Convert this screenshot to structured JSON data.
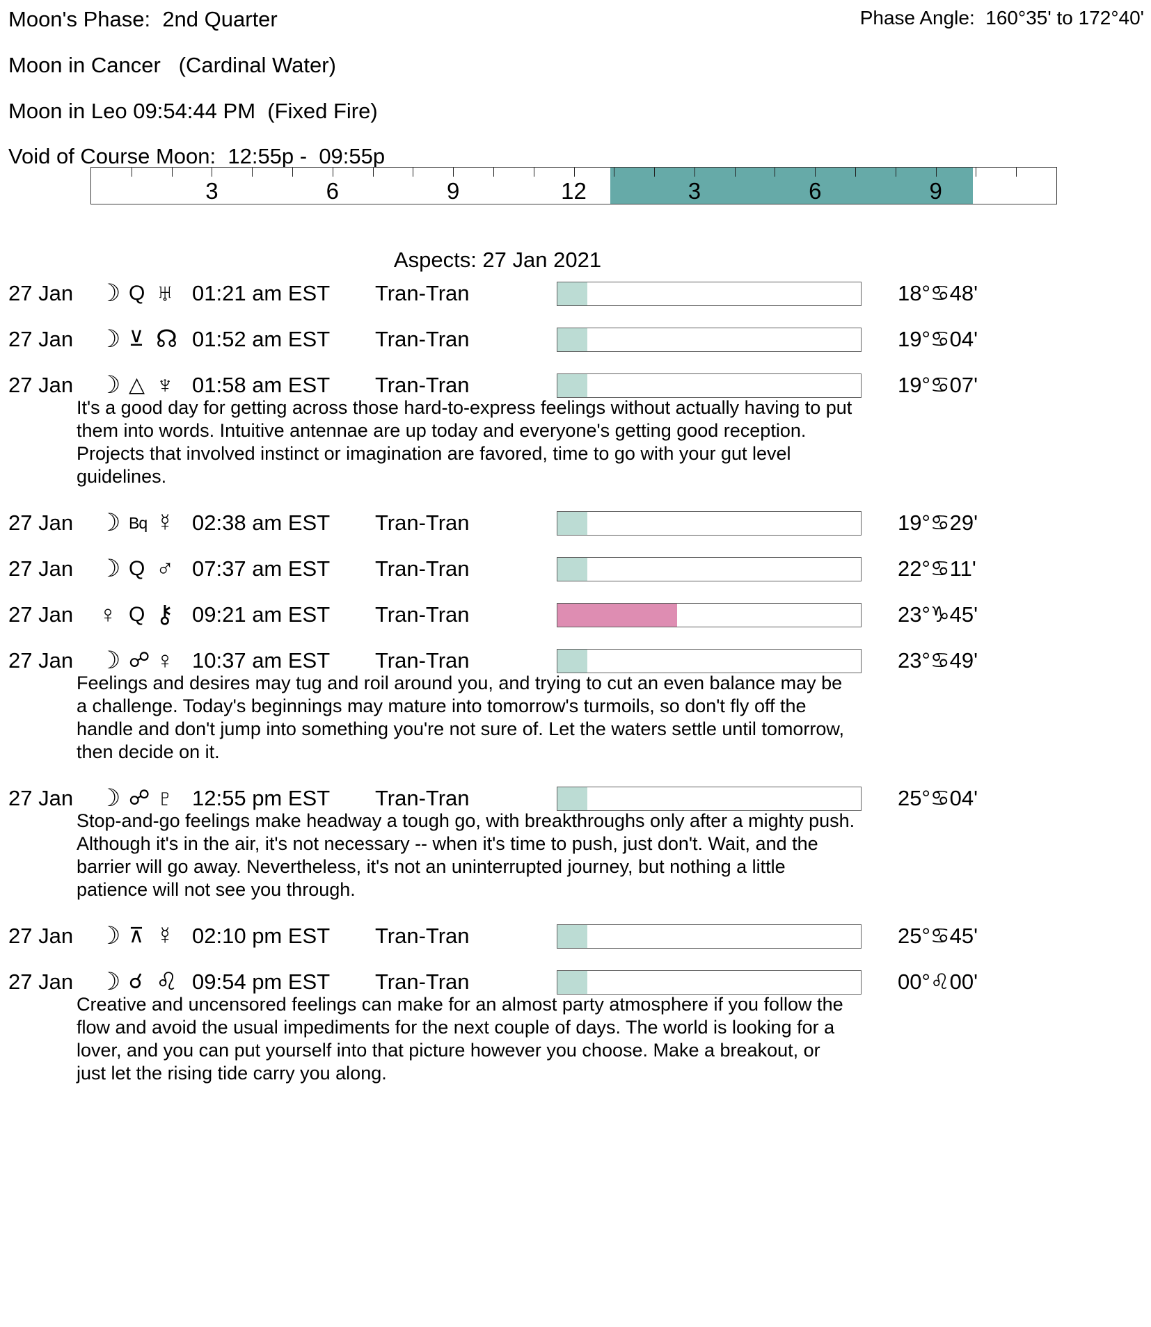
{
  "header": {
    "moons_phase": "Moon's Phase:  2nd Quarter",
    "phase_angle": "Phase Angle:  160°35' to 172°40'",
    "moon_in_cancer": "Moon in Cancer   (Cardinal Water)",
    "moon_in_leo": "Moon in Leo 09:54:44 PM  (Fixed Fire)",
    "void_of_course": "Void of Course Moon:  12:55p -  09:55p"
  },
  "ruler": {
    "hours_total": 24,
    "labels": [
      "3",
      "6",
      "9",
      "12",
      "3",
      "6",
      "9"
    ],
    "label_hours": [
      3,
      6,
      9,
      12,
      15,
      18,
      21
    ],
    "void_start_hour": 12.9167,
    "void_end_hour": 21.9167
  },
  "aspects_title": "Aspects: 27 Jan 2021",
  "colors": {
    "ruler_fill": "#66aaa8",
    "bar_fill_teal": "#bcdcd4",
    "bar_fill_pink": "#de8db2"
  },
  "rows": [
    {
      "date": "27 Jan",
      "p1": "☽",
      "asp": "Q",
      "p2": "♅",
      "time": "01:21 am EST",
      "type": "Tran-Tran",
      "fill": "teal",
      "fill_pct": 9.9,
      "degree": "18°♋48'"
    },
    {
      "date": "27 Jan",
      "p1": "☽",
      "asp": "⊻",
      "p2": "☊",
      "time": "01:52 am EST",
      "type": "Tran-Tran",
      "fill": "teal",
      "fill_pct": 9.9,
      "degree": "19°♋04'"
    },
    {
      "date": "27 Jan",
      "p1": "☽",
      "asp": "△",
      "p2": "♆",
      "time": "01:58 am EST",
      "type": "Tran-Tran",
      "fill": "teal",
      "fill_pct": 9.9,
      "degree": "19°♋07'",
      "note": "It's a good day for getting across those hard-to-express feelings without actually having to put\nthem into words. Intuitive antennae are up today and everyone's getting good reception.\nProjects that involved instinct or imagination are favored, time to go with your gut level\nguidelines."
    },
    {
      "date": "27 Jan",
      "p1": "☽",
      "asp": "Bq",
      "p2": "☿",
      "time": "02:38 am EST",
      "type": "Tran-Tran",
      "fill": "teal",
      "fill_pct": 9.9,
      "degree": "19°♋29'"
    },
    {
      "date": "27 Jan",
      "p1": "☽",
      "asp": "Q",
      "p2": "♂",
      "time": "07:37 am EST",
      "type": "Tran-Tran",
      "fill": "teal",
      "fill_pct": 9.9,
      "degree": "22°♋11'"
    },
    {
      "date": "27 Jan",
      "p1": "♀",
      "asp": "Q",
      "p2": "⚷",
      "time": "09:21 am EST",
      "type": "Tran-Tran",
      "fill": "pink",
      "fill_pct": 39.4,
      "degree": "23°♑45'"
    },
    {
      "date": "27 Jan",
      "p1": "☽",
      "asp": "☍",
      "p2": "♀",
      "time": "10:37 am EST",
      "type": "Tran-Tran",
      "fill": "teal",
      "fill_pct": 9.9,
      "degree": "23°♋49'",
      "note": "Feelings and desires may tug and roil around you, and trying to cut an even balance may be\na challenge. Today's beginnings may mature into tomorrow's turmoils, so don't fly off the\nhandle and don't jump into something you're not sure of. Let the waters settle until tomorrow,\nthen decide on it."
    },
    {
      "date": "27 Jan",
      "p1": "☽",
      "asp": "☍",
      "p2": "♇",
      "time": "12:55 pm EST",
      "type": "Tran-Tran",
      "fill": "teal",
      "fill_pct": 9.9,
      "degree": "25°♋04'",
      "note": "Stop-and-go feelings make headway a tough go, with breakthroughs only after a mighty push.\nAlthough it's in the air, it's not necessary -- when it's time to push, just don't. Wait, and the\nbarrier will go away. Nevertheless, it's not an uninterrupted journey, but nothing a little\npatience will not see you through."
    },
    {
      "date": "27 Jan",
      "p1": "☽",
      "asp": "⊼",
      "p2": "☿",
      "time": "02:10 pm EST",
      "type": "Tran-Tran",
      "fill": "teal",
      "fill_pct": 9.9,
      "degree": "25°♋45'"
    },
    {
      "date": "27 Jan",
      "p1": "☽",
      "asp": "☌",
      "p2": "♌",
      "time": "09:54 pm EST",
      "type": "Tran-Tran",
      "fill": "teal",
      "fill_pct": 9.9,
      "degree": "00°♌00'",
      "note": "Creative and uncensored feelings can make for an almost party atmosphere if you follow the\nflow and avoid the usual impediments for the next couple of days. The world is looking for a\nlover, and you can put yourself into that picture however you choose. Make a breakout, or\njust let the rising tide carry you along."
    }
  ]
}
